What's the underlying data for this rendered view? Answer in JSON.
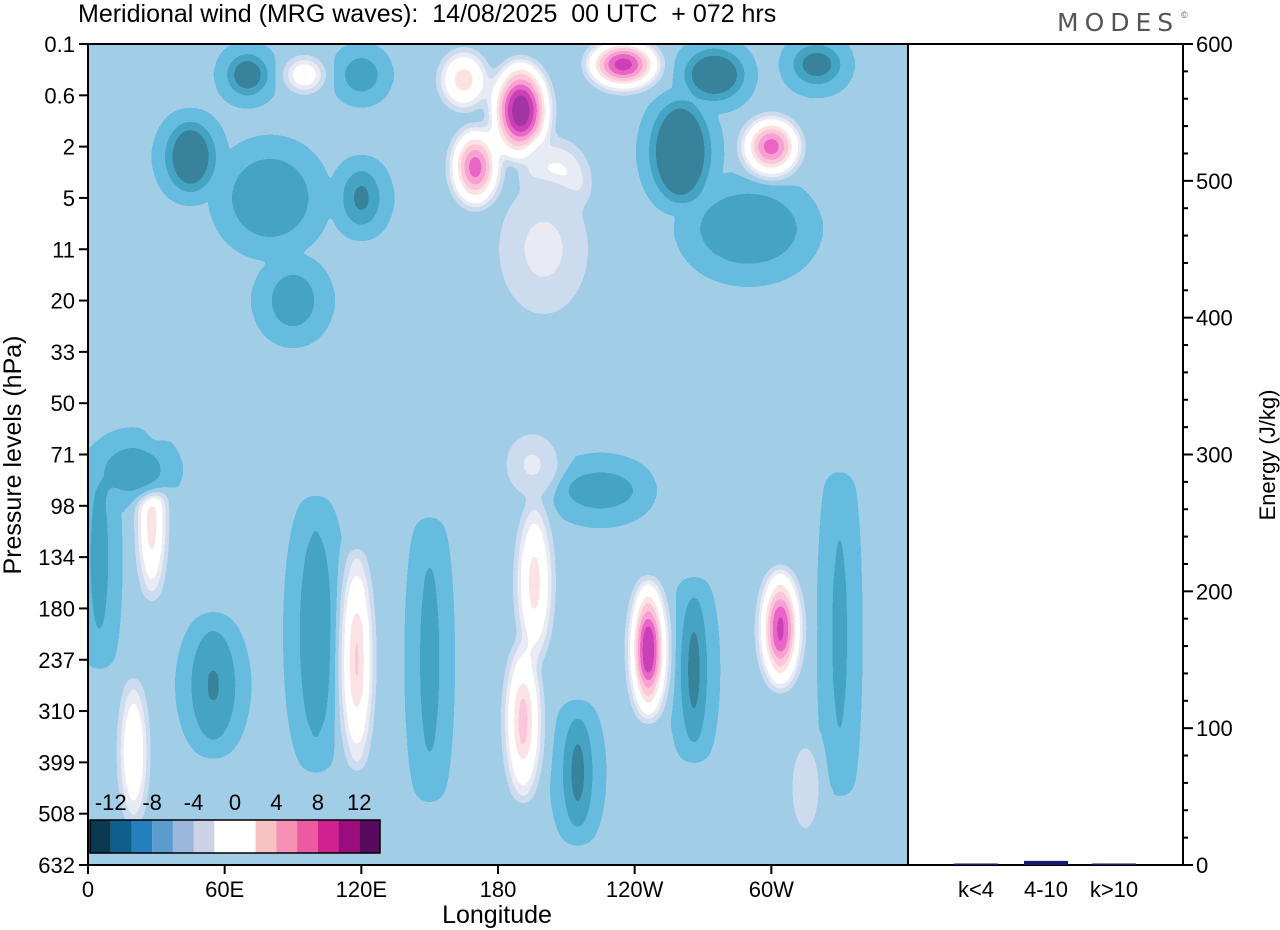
{
  "header": {
    "title": "Meridional wind (MRG waves):  14/08/2025  00 UTC  + 072 hrs",
    "brand": "MODES",
    "brand_mark": "©"
  },
  "chart_data": [
    {
      "type": "heatmap",
      "title": "Meridional wind (MRG waves):  14/08/2025  00 UTC  + 072 hrs",
      "xlabel": "Longitude",
      "ylabel": "Pressure levels (hPa)",
      "x_ticks": [
        "0",
        "60E",
        "120E",
        "180",
        "120W",
        "60W"
      ],
      "y_ticks": [
        "0.1",
        "0.6",
        "2",
        "5",
        "11",
        "20",
        "33",
        "50",
        "71",
        "98",
        "134",
        "180",
        "237",
        "310",
        "399",
        "508",
        "632"
      ],
      "colorbar": {
        "labels": [
          "-12",
          "-8",
          "-4",
          "0",
          "4",
          "8",
          "12"
        ],
        "levels": [
          -14,
          -12,
          -10,
          -8,
          -6,
          -4,
          -2,
          2,
          4,
          6,
          8,
          10,
          12,
          14
        ],
        "colors": [
          "#0b3954",
          "#0f5f8c",
          "#2380bd",
          "#5b9ccc",
          "#9ab6da",
          "#cdd1e6",
          "#ffffff",
          "#ffffff",
          "#f9c3c3",
          "#f58fb3",
          "#ec5ba2",
          "#cf2290",
          "#9a0d7a",
          "#5a0a5e"
        ]
      },
      "anomalies": [
        {
          "lon": 5,
          "lev": 10,
          "v": -6,
          "rx": 4,
          "ry": 2.0
        },
        {
          "lon": 28,
          "lev": 9.3,
          "v": 10,
          "rx": 5,
          "ry": 1.6
        },
        {
          "lon": 20,
          "lev": 13.8,
          "v": 9,
          "rx": 5,
          "ry": 1.5
        },
        {
          "lon": 55,
          "lev": 12.5,
          "v": -6,
          "rx": 10,
          "ry": 1.2
        },
        {
          "lon": 118,
          "lev": 12.0,
          "v": 10,
          "rx": 6,
          "ry": 2.2
        },
        {
          "lon": 100,
          "lev": 11.5,
          "v": -5,
          "rx": 8,
          "ry": 2.5
        },
        {
          "lon": 150,
          "lev": 12.0,
          "v": -5,
          "rx": 5,
          "ry": 2.6
        },
        {
          "lon": 196,
          "lev": 10.5,
          "v": 9,
          "rx": 7,
          "ry": 1.6
        },
        {
          "lon": 191,
          "lev": 13.2,
          "v": 10,
          "rx": 7,
          "ry": 1.6
        },
        {
          "lon": 215,
          "lev": 14.2,
          "v": -8,
          "rx": 6,
          "ry": 1.2
        },
        {
          "lon": 246,
          "lev": 11.8,
          "v": 14,
          "rx": 7,
          "ry": 1.4
        },
        {
          "lon": 266,
          "lev": 12.2,
          "v": -9,
          "rx": 5,
          "ry": 1.6
        },
        {
          "lon": 304,
          "lev": 11.4,
          "v": 13,
          "rx": 8,
          "ry": 1.2
        },
        {
          "lon": 330,
          "lev": 11.5,
          "v": -5,
          "rx": 4,
          "ry": 3.0
        },
        {
          "lon": 315,
          "lev": 14.5,
          "v": 4,
          "rx": 6,
          "ry": 1.0
        },
        {
          "lon": 195,
          "lev": 8.2,
          "v": 4,
          "rx": 12,
          "ry": 0.7
        },
        {
          "lon": 225,
          "lev": 8.7,
          "v": -4,
          "rx": 18,
          "ry": 0.5
        },
        {
          "lon": 45,
          "lev": 2.2,
          "v": -11,
          "rx": 10,
          "ry": 0.7
        },
        {
          "lon": 70,
          "lev": 0.6,
          "v": -12,
          "rx": 8,
          "ry": 0.4
        },
        {
          "lon": 95,
          "lev": 0.6,
          "v": 8,
          "rx": 8,
          "ry": 0.35
        },
        {
          "lon": 120,
          "lev": 0.6,
          "v": -6,
          "rx": 8,
          "ry": 0.4
        },
        {
          "lon": 165,
          "lev": 0.7,
          "v": 9,
          "rx": 10,
          "ry": 0.6
        },
        {
          "lon": 190,
          "lev": 1.3,
          "v": 14,
          "rx": 12,
          "ry": 1.0
        },
        {
          "lon": 170,
          "lev": 2.4,
          "v": 12,
          "rx": 10,
          "ry": 0.8
        },
        {
          "lon": 205,
          "lev": 2.7,
          "v": 6,
          "rx": 15,
          "ry": 0.9
        },
        {
          "lon": 200,
          "lev": 4.0,
          "v": 4,
          "rx": 20,
          "ry": 1.4
        },
        {
          "lon": 235,
          "lev": 0.4,
          "v": 13,
          "rx": 15,
          "ry": 0.5
        },
        {
          "lon": 275,
          "lev": 0.6,
          "v": -12,
          "rx": 12,
          "ry": 0.5
        },
        {
          "lon": 260,
          "lev": 2.1,
          "v": -13,
          "rx": 12,
          "ry": 1.0
        },
        {
          "lon": 300,
          "lev": 2.0,
          "v": 12,
          "rx": 12,
          "ry": 0.6
        },
        {
          "lon": 320,
          "lev": 0.4,
          "v": -9,
          "rx": 10,
          "ry": 0.4
        },
        {
          "lon": 290,
          "lev": 3.6,
          "v": -4,
          "rx": 25,
          "ry": 0.9
        },
        {
          "lon": 120,
          "lev": 3.0,
          "v": -7,
          "rx": 8,
          "ry": 0.6
        },
        {
          "lon": 80,
          "lev": 3.0,
          "v": -4,
          "rx": 20,
          "ry": 1.0
        },
        {
          "lon": 90,
          "lev": 5.0,
          "v": -4,
          "rx": 12,
          "ry": 0.7
        },
        {
          "lon": 20,
          "lev": 8.3,
          "v": -4,
          "rx": 15,
          "ry": 0.6
        }
      ],
      "energy_axis": {
        "ylabel": "Energy (J/kg)",
        "ylim": [
          0,
          600
        ],
        "y_ticks": [
          "0",
          "100",
          "200",
          "300",
          "400",
          "500",
          "600"
        ]
      },
      "energy_bars": {
        "categories": [
          "k<4",
          "4-10",
          "k>10"
        ],
        "values": [
          0.5,
          3,
          0.5
        ]
      }
    }
  ]
}
